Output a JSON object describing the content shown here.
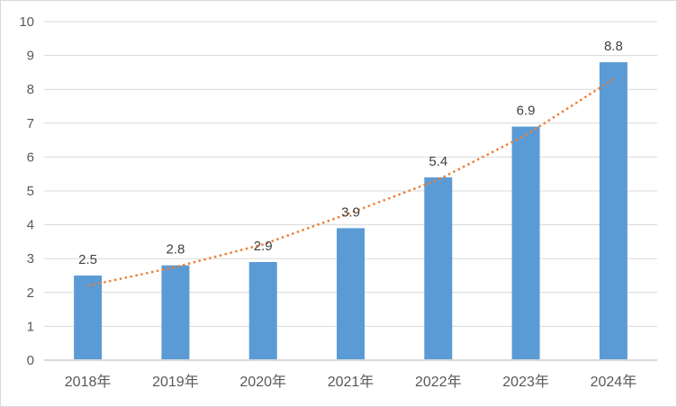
{
  "chart_data": {
    "type": "bar",
    "title": "",
    "xlabel": "",
    "ylabel": "",
    "categories": [
      "2018年",
      "2019年",
      "2020年",
      "2021年",
      "2022年",
      "2023年",
      "2024年"
    ],
    "values": [
      2.5,
      2.8,
      2.9,
      3.9,
      5.4,
      6.9,
      8.8
    ],
    "data_labels": [
      "2.5",
      "2.8",
      "2.9",
      "3.9",
      "5.4",
      "6.9",
      "8.8"
    ],
    "ylim": [
      0,
      10
    ],
    "ytick_step": 1,
    "yticks": [
      "0",
      "1",
      "2",
      "3",
      "4",
      "5",
      "6",
      "7",
      "8",
      "9",
      "10"
    ],
    "grid": true,
    "legend": "none",
    "trendline": {
      "type": "exponential",
      "style": "dotted",
      "values": [
        2.2,
        2.75,
        3.42,
        4.35,
        5.33,
        6.65,
        8.3
      ]
    },
    "colors": {
      "bar": "#5B9BD5",
      "trendline": "#ED7D31",
      "gridline": "#D9D9D9",
      "axis_line": "#D9D9D9",
      "ytick_label": "#595959",
      "xtick_label": "#595959",
      "data_label": "#404040",
      "background": "#FFFFFF",
      "border": "#D9D9D9"
    }
  }
}
